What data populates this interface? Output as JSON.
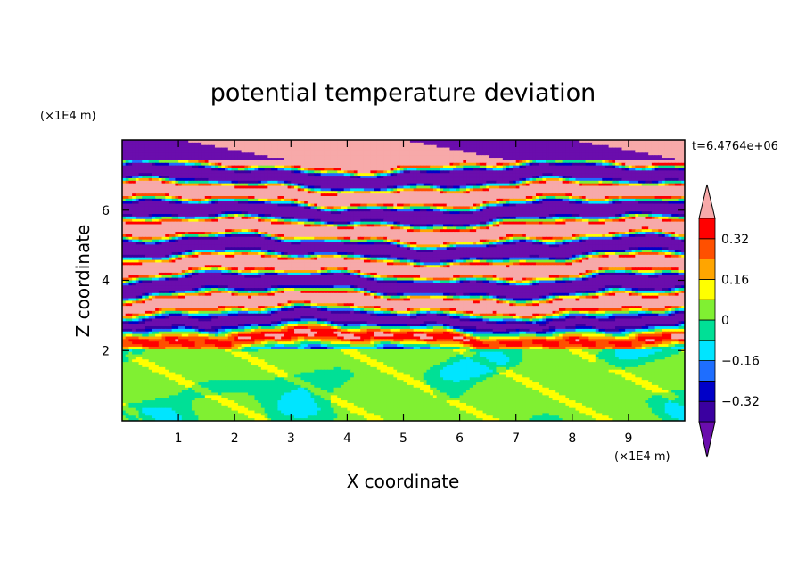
{
  "chart_data": {
    "type": "heatmap",
    "title": "potential temperature deviation",
    "xlabel": "X coordinate",
    "ylabel": "Z coordinate",
    "x_unit": "(×1E4 m)",
    "y_unit": "(×1E4 m)",
    "time_label": "t=6.4764e+06",
    "xlim": [
      0,
      10
    ],
    "ylim": [
      0,
      8
    ],
    "x_ticks": [
      "1",
      "2",
      "3",
      "4",
      "5",
      "6",
      "7",
      "8",
      "9"
    ],
    "x_tick_values": [
      1,
      2,
      3,
      4,
      5,
      6,
      7,
      8,
      9
    ],
    "y_ticks": [
      "2",
      "4",
      "6"
    ],
    "y_tick_values": [
      2,
      4,
      6
    ],
    "colorbar": {
      "levels": [
        -0.4,
        -0.32,
        -0.24,
        -0.16,
        -0.08,
        0,
        0.08,
        0.16,
        0.24,
        0.32,
        0.4
      ],
      "labels": [
        "0.32",
        "0.16",
        "0",
        "−0.16",
        "−0.32"
      ],
      "label_values": [
        0.32,
        0.16,
        0,
        -0.16,
        -0.32
      ],
      "colors_low_to_high": [
        "#6a0dad",
        "#3a00a0",
        "#0000c8",
        "#1e6eff",
        "#00e5ff",
        "#00e096",
        "#80f032",
        "#ffff00",
        "#ffa500",
        "#ff5000",
        "#ff0000",
        "#f7a9a9"
      ]
    },
    "grid": false,
    "legend": "colorbar-right"
  }
}
